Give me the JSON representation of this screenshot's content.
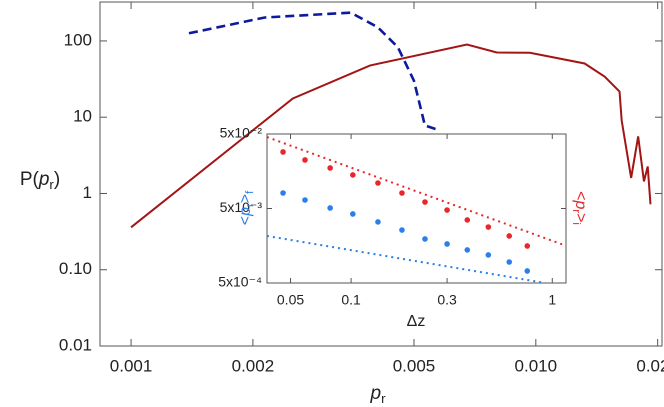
{
  "chart_data": [
    {
      "type": "line",
      "x_label": [
        "p",
        "r"
      ],
      "y_label": [
        "P(",
        "p",
        "r",
        ")"
      ],
      "xlog": true,
      "ylog": true,
      "xlim": [
        0.000838,
        0.0205
      ],
      "ylim": [
        0.01,
        324
      ],
      "xticks": [
        0.001,
        0.002,
        0.005,
        {
          "value": 0.01,
          "label": "0.010"
        },
        {
          "value": 0.02,
          "label": "0.020"
        }
      ],
      "yticks": [
        0.01,
        {
          "value": 0.1,
          "label": "0.10"
        },
        1,
        10,
        100
      ],
      "series": [
        {
          "color": "#a31515",
          "line_style": "solid",
          "x": [
            0.001,
            0.00251,
            0.00389,
            0.00676,
            0.00801,
            0.00967,
            0.0132,
            0.0148,
            0.0161,
            0.0163,
            0.0172,
            0.0179,
            0.0185,
            0.0189,
            0.0192
          ],
          "values": [
            0.36,
            17.6,
            47.6,
            89.7,
            70.5,
            70,
            50.6,
            34,
            21.7,
            9.0,
            1.6,
            5.6,
            1.44,
            2.26,
            0.72
          ]
        },
        {
          "color": "#0d1a9c",
          "line_style": "dashed",
          "x": [
            0.00139,
            0.00214,
            0.00349,
            0.00407,
            0.00456,
            0.005,
            0.00532,
            0.0058
          ],
          "values": [
            126,
            203,
            235,
            151,
            83,
            30,
            7.8,
            6.7
          ]
        }
      ]
    },
    {
      "type": "scatter",
      "x_label": "Δz",
      "y_label": [
        "<",
        "p",
        "r",
        ">",
        "f"
      ],
      "y2_label": [
        "<",
        "p",
        "r",
        ">",
        "i"
      ],
      "xlog": true,
      "ylog": true,
      "xlim": [
        0.0382,
        1.17
      ],
      "ylim": [
        0.0005,
        0.05
      ],
      "xticks": [
        0.05,
        0.1,
        0.3,
        1
      ],
      "yticks": [
        {
          "value": 0.0005,
          "label": "5x10⁻⁴"
        },
        {
          "value": 0.005,
          "label": "5x10⁻³"
        },
        {
          "value": 0.05,
          "label": "5x10⁻²"
        }
      ],
      "series": [
        {
          "color": "#e8262b",
          "mode": "markers",
          "x": [
            0.0459,
            0.059,
            0.0787,
            0.102,
            0.136,
            0.179,
            0.233,
            0.3,
            0.378,
            0.481,
            0.611,
            0.751
          ],
          "values": [
            0.0287,
            0.0224,
            0.0175,
            0.0141,
            0.011,
            0.00807,
            0.00611,
            0.00477,
            0.00351,
            0.00282,
            0.00214,
            0.00157
          ]
        },
        {
          "color": "#2a7fe8",
          "mode": "markers",
          "x": [
            0.0459,
            0.059,
            0.0787,
            0.102,
            0.136,
            0.179,
            0.233,
            0.3,
            0.378,
            0.481,
            0.611,
            0.751
          ],
          "values": [
            0.00807,
            0.0065,
            0.00508,
            0.00422,
            0.0033,
            0.00257,
            0.00195,
            0.00167,
            0.00139,
            0.00119,
            0.000957,
            0.000725
          ]
        },
        {
          "color": "#e8262b",
          "line_style": "dotted",
          "x": [
            0.0382,
            1.17
          ],
          "values": [
            0.0455,
            0.00158
          ]
        },
        {
          "color": "#2a7fe8",
          "line_style": "dotted",
          "x": [
            0.0382,
            0.923
          ],
          "values": [
            0.00214,
            0.0005
          ]
        }
      ]
    }
  ]
}
